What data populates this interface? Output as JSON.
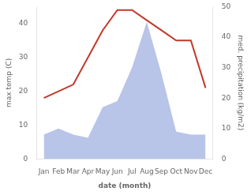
{
  "chart_data": {
    "type": "line",
    "xlabel": "date (month)",
    "ylabel": "max temp (C)",
    "y2label": "med. precipitation (kg/m2)",
    "categories": [
      "Jan",
      "Feb",
      "Mar",
      "Apr",
      "May",
      "Jun",
      "Jul",
      "Aug",
      "Sep",
      "Oct",
      "Nov",
      "Dec"
    ],
    "series": [
      {
        "type": "line",
        "color": "#c0392b",
        "values": [
          18,
          20,
          22,
          30,
          38,
          44,
          44,
          41,
          38,
          35,
          35,
          21
        ]
      },
      {
        "type": "area",
        "color": "#b8c4e8",
        "axis": "y2",
        "values": [
          8,
          10,
          8,
          7,
          17,
          19,
          30,
          45,
          28,
          9,
          8,
          8
        ]
      }
    ],
    "ylim": [
      0,
      45
    ],
    "yticks": [
      0,
      10,
      20,
      30,
      40
    ],
    "y2lim": [
      0,
      50
    ],
    "y2ticks": [
      0,
      10,
      20,
      30,
      40,
      50
    ],
    "grid": false
  }
}
